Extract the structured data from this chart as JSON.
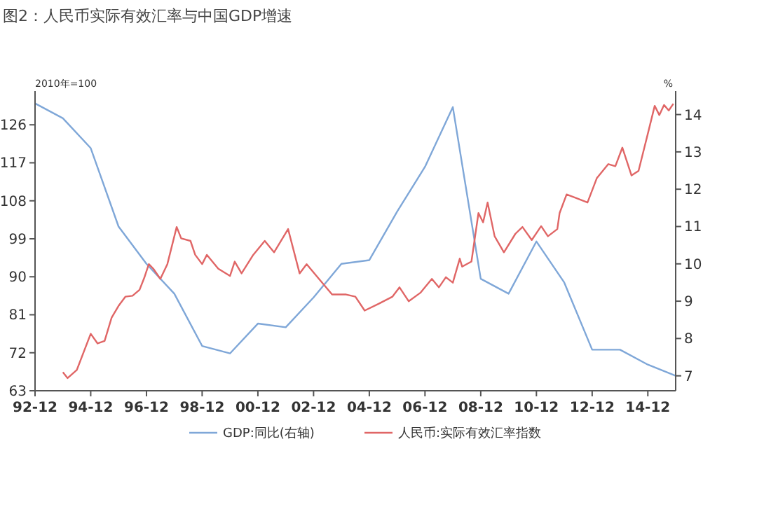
{
  "chart_data": {
    "type": "line",
    "title": "图2：人民币实际有效汇率与中国GDP增速",
    "ylabel": "2010年=100",
    "y2label": "%",
    "xlim": [
      "1992-12",
      "2015-12"
    ],
    "xticks": [
      {
        "value": "1992-12",
        "label": "92-12"
      },
      {
        "value": "1994-12",
        "label": "94-12"
      },
      {
        "value": "1996-12",
        "label": "96-12"
      },
      {
        "value": "1998-12",
        "label": "98-12"
      },
      {
        "value": "2000-12",
        "label": "00-12"
      },
      {
        "value": "2002-12",
        "label": "02-12"
      },
      {
        "value": "2004-12",
        "label": "04-12"
      },
      {
        "value": "2006-12",
        "label": "06-12"
      },
      {
        "value": "2008-12",
        "label": "08-12"
      },
      {
        "value": "2010-12",
        "label": "10-12"
      },
      {
        "value": "2012-12",
        "label": "12-12"
      },
      {
        "value": "2014-12",
        "label": "14-12"
      }
    ],
    "ylim": [
      63,
      134
    ],
    "yticks": [
      63,
      72,
      81,
      90,
      99,
      108,
      117,
      126
    ],
    "y2lim": [
      6.6,
      14.63
    ],
    "y2ticks": [
      7,
      8,
      9,
      10,
      11,
      12,
      13,
      14
    ],
    "legend": "bottom",
    "grid": false,
    "series": [
      {
        "name": "GDP:同比(右轴)",
        "color": "#7fa7d8",
        "axis": "y2",
        "x": [
          "1992-12",
          "1993-12",
          "1994-12",
          "1995-12",
          "1996-12",
          "1997-12",
          "1998-12",
          "1999-12",
          "2000-12",
          "2001-12",
          "2002-12",
          "2003-12",
          "2004-12",
          "2005-12",
          "2006-12",
          "2007-12",
          "2008-12",
          "2009-12",
          "2010-12",
          "2011-12",
          "2012-12",
          "2013-12",
          "2014-12",
          "2015-12"
        ],
        "values": [
          14.3,
          13.9,
          13.1,
          11.0,
          10.0,
          9.2,
          7.8,
          7.6,
          8.4,
          8.3,
          9.1,
          10.0,
          10.1,
          11.4,
          12.6,
          14.2,
          9.6,
          9.2,
          10.6,
          9.5,
          7.7,
          7.7,
          7.3,
          7.0
        ]
      },
      {
        "name": "人民币:实际有效汇率指数",
        "color": "#e06666",
        "x": [
          "1993-12",
          "1994-02",
          "1994-06",
          "1994-12",
          "1995-03",
          "1995-06",
          "1995-09",
          "1995-12",
          "1996-03",
          "1996-06",
          "1996-09",
          "1996-11",
          "1997-01",
          "1997-03",
          "1997-06",
          "1997-09",
          "1998-01",
          "1998-03",
          "1998-07",
          "1998-09",
          "1998-12",
          "1999-02",
          "1999-07",
          "1999-12",
          "2000-02",
          "2000-05",
          "2000-10",
          "2001-03",
          "2001-07",
          "2002-01",
          "2002-06",
          "2002-09",
          "2003-03",
          "2003-08",
          "2004-02",
          "2004-06",
          "2004-10",
          "2005-04",
          "2005-10",
          "2006-01",
          "2006-05",
          "2006-10",
          "2007-03",
          "2007-06",
          "2007-09",
          "2007-12",
          "2008-03",
          "2008-04",
          "2008-08",
          "2008-11",
          "2009-01",
          "2009-03",
          "2009-06",
          "2009-10",
          "2010-03",
          "2010-06",
          "2010-10",
          "2011-02",
          "2011-05",
          "2011-09",
          "2011-10",
          "2012-01",
          "2012-05",
          "2012-10",
          "2013-02",
          "2013-07",
          "2013-10",
          "2014-01",
          "2014-05",
          "2014-08",
          "2014-12",
          "2015-03",
          "2015-05",
          "2015-07",
          "2015-09",
          "2015-11"
        ],
        "values": [
          67.4,
          66.0,
          67.9,
          76.5,
          74.2,
          74.8,
          80.3,
          83.1,
          85.3,
          85.5,
          86.9,
          89.7,
          93.0,
          91.9,
          89.5,
          93.0,
          101.8,
          99.1,
          98.5,
          95.2,
          93.0,
          95.2,
          91.9,
          90.2,
          93.6,
          90.8,
          95.2,
          98.5,
          95.8,
          101.3,
          90.8,
          93.0,
          89.1,
          85.8,
          85.8,
          85.3,
          82.0,
          83.6,
          85.3,
          87.5,
          84.2,
          86.2,
          89.5,
          87.5,
          89.9,
          88.6,
          94.3,
          92.4,
          93.6,
          105.1,
          102.9,
          107.6,
          99.6,
          95.8,
          100.2,
          101.8,
          98.7,
          102.0,
          99.6,
          101.3,
          105.1,
          109.5,
          108.7,
          107.6,
          113.4,
          116.7,
          116.2,
          120.6,
          114.0,
          115.1,
          123.9,
          130.5,
          128.3,
          130.7,
          129.4,
          131.0
        ]
      }
    ]
  }
}
